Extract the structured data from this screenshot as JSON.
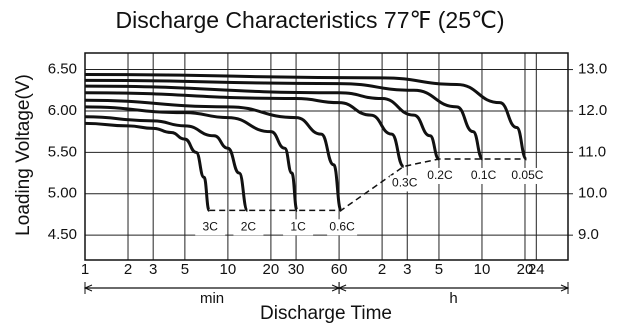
{
  "chart_data": {
    "type": "line",
    "title": "Discharge Characteristics 77℉ (25℃)",
    "xlabel": "Discharge Time",
    "ylabel": "Loading Voltage(V)",
    "xscale": "log",
    "xlim": [
      1,
      2400
    ],
    "xticks": [
      1,
      2,
      3,
      5,
      10,
      20,
      30,
      60,
      {
        "value": 120,
        "label": "2"
      },
      {
        "value": 180,
        "label": "3"
      },
      {
        "value": 300,
        "label": "5"
      },
      {
        "value": 600,
        "label": "10"
      },
      {
        "value": 1200,
        "label": "20"
      },
      {
        "value": 1440,
        "label": "24"
      }
    ],
    "x_groups": [
      {
        "label": "min",
        "range": [
          1,
          60
        ]
      },
      {
        "label": "h",
        "range": [
          60,
          2400
        ]
      }
    ],
    "ylim": [
      4.2,
      6.7
    ],
    "yticks": [
      {
        "value": 4.5,
        "label": "4.50"
      },
      {
        "value": 5,
        "label": "5.00"
      },
      {
        "value": 5.5,
        "label": "5.50"
      },
      {
        "value": 6,
        "label": "6.00"
      },
      {
        "value": 6.5,
        "label": "6.50"
      }
    ],
    "y2lim": [
      8.4,
      13.4
    ],
    "y2ticks": [
      {
        "value": 9,
        "label": "9.0"
      },
      {
        "value": 10,
        "label": "10.0"
      },
      {
        "value": 11,
        "label": "11.0"
      },
      {
        "value": 12,
        "label": "12.0"
      },
      {
        "value": 13,
        "label": "13.0"
      }
    ],
    "grid": true,
    "color": "#111111",
    "series": [
      {
        "name": "3C",
        "x": [
          1,
          2,
          3,
          4,
          5,
          6,
          6.8,
          7.4
        ],
        "values": [
          5.85,
          5.82,
          5.79,
          5.74,
          5.66,
          5.5,
          5.2,
          4.8
        ]
      },
      {
        "name": "2C",
        "x": [
          1,
          3,
          5,
          8,
          10,
          12,
          13.7
        ],
        "values": [
          5.93,
          5.88,
          5.82,
          5.7,
          5.55,
          5.25,
          4.8
        ]
      },
      {
        "name": "1C",
        "x": [
          1,
          5,
          10,
          20,
          25,
          28,
          30.5
        ],
        "values": [
          6.05,
          5.98,
          5.92,
          5.75,
          5.55,
          5.25,
          4.8
        ]
      },
      {
        "name": "0.6C",
        "x": [
          1,
          10,
          30,
          45,
          55,
          62
        ],
        "values": [
          6.13,
          6.05,
          5.92,
          5.72,
          5.35,
          4.8
        ]
      },
      {
        "name": "0.3C",
        "x": [
          1,
          30,
          60,
          100,
          140,
          170
        ],
        "values": [
          6.22,
          6.15,
          6.1,
          5.95,
          5.72,
          5.33
        ]
      },
      {
        "name": "0.2C",
        "x": [
          1,
          60,
          120,
          200,
          260,
          300
        ],
        "values": [
          6.3,
          6.22,
          6.15,
          5.95,
          5.7,
          5.42
        ]
      },
      {
        "name": "0.1C",
        "x": [
          1,
          60,
          200,
          400,
          520,
          606
        ],
        "values": [
          6.37,
          6.33,
          6.25,
          6.05,
          5.75,
          5.42
        ]
      },
      {
        "name": "0.05C",
        "x": [
          1,
          120,
          400,
          800,
          1050,
          1228
        ],
        "values": [
          6.44,
          6.4,
          6.32,
          6.1,
          5.8,
          5.42
        ]
      }
    ]
  }
}
